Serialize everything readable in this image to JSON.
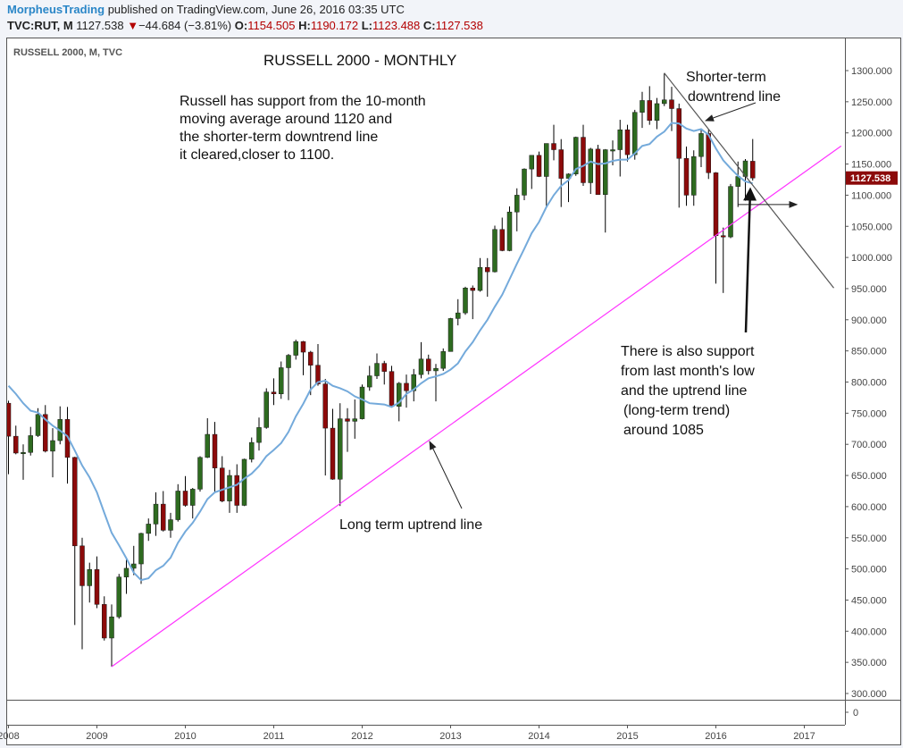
{
  "header": {
    "publisher": "MorpheusTrading",
    "published_text": "published on TradingView.com, June 26, 2016 03:35 UTC",
    "symbol": "TVC:RUT, M",
    "last": "1127.538",
    "change": "−44.684 (−3.81%)",
    "change_direction_icon": "triangle-down-icon",
    "open_label": "O:",
    "open": "1154.505",
    "high_label": "H:",
    "high": "1190.172",
    "low_label": "L:",
    "low": "1123.488",
    "close_label": "C:",
    "close": "1127.538"
  },
  "colors": {
    "up": "#2e6b20",
    "down": "#8c0a0a",
    "ma": "#74aadb",
    "uptrend": "#ff33ff",
    "downtrend": "#555555",
    "last_price_bg": "#8c0a0a"
  },
  "chart_data": {
    "type": "candlestick",
    "legend": "RUSSELL 2000, M, TVC",
    "title": "RUSSELL 2000 - MONTHLY",
    "ylim": [
      280,
      1340
    ],
    "xlim": [
      "2008-01",
      "2017-06"
    ],
    "y_ticks": [
      "300.000",
      "350.000",
      "400.000",
      "450.000",
      "500.000",
      "550.000",
      "600.000",
      "650.000",
      "700.000",
      "750.000",
      "800.000",
      "850.000",
      "900.000",
      "950.000",
      "1000.000",
      "1050.000",
      "1100.000",
      "1150.000",
      "1200.000",
      "1250.000",
      "1300.000"
    ],
    "x_ticks": [
      "2008",
      "2009",
      "2010",
      "2011",
      "2012",
      "2013",
      "2014",
      "2015",
      "2016",
      "2017"
    ],
    "sub_pane_tick": "0",
    "last_price_label": "1127.538",
    "candles_format": [
      "date",
      "open",
      "high",
      "low",
      "close"
    ],
    "candles": [
      [
        "2008-01",
        766,
        770,
        652,
        713
      ],
      [
        "2008-02",
        713,
        730,
        684,
        686
      ],
      [
        "2008-03",
        686,
        700,
        643,
        687
      ],
      [
        "2008-04",
        687,
        728,
        682,
        714
      ],
      [
        "2008-05",
        714,
        758,
        712,
        748
      ],
      [
        "2008-06",
        748,
        763,
        687,
        689
      ],
      [
        "2008-07",
        689,
        726,
        647,
        706
      ],
      [
        "2008-08",
        706,
        761,
        700,
        740
      ],
      [
        "2008-09",
        740,
        760,
        637,
        679
      ],
      [
        "2008-10",
        679,
        680,
        410,
        537
      ],
      [
        "2008-11",
        537,
        550,
        371,
        473
      ],
      [
        "2008-12",
        473,
        510,
        446,
        499
      ],
      [
        "2009-01",
        499,
        520,
        437,
        443
      ],
      [
        "2009-02",
        443,
        456,
        385,
        389
      ],
      [
        "2009-03",
        389,
        443,
        343,
        423
      ],
      [
        "2009-04",
        423,
        492,
        420,
        487
      ],
      [
        "2009-05",
        487,
        515,
        460,
        501
      ],
      [
        "2009-06",
        501,
        537,
        490,
        508
      ],
      [
        "2009-07",
        508,
        558,
        476,
        557
      ],
      [
        "2009-08",
        557,
        581,
        545,
        572
      ],
      [
        "2009-09",
        572,
        623,
        553,
        604
      ],
      [
        "2009-10",
        604,
        625,
        560,
        562
      ],
      [
        "2009-11",
        562,
        590,
        550,
        579
      ],
      [
        "2009-12",
        579,
        636,
        576,
        625
      ],
      [
        "2010-01",
        625,
        649,
        600,
        602
      ],
      [
        "2010-02",
        602,
        630,
        581,
        628
      ],
      [
        "2010-03",
        628,
        681,
        624,
        679
      ],
      [
        "2010-04",
        679,
        742,
        678,
        716
      ],
      [
        "2010-05",
        716,
        736,
        624,
        662
      ],
      [
        "2010-06",
        662,
        681,
        607,
        609
      ],
      [
        "2010-07",
        609,
        659,
        590,
        650
      ],
      [
        "2010-08",
        650,
        668,
        590,
        602
      ],
      [
        "2010-09",
        602,
        677,
        601,
        676
      ],
      [
        "2010-10",
        676,
        711,
        671,
        703
      ],
      [
        "2010-11",
        703,
        743,
        690,
        727
      ],
      [
        "2010-12",
        727,
        790,
        725,
        784
      ],
      [
        "2011-01",
        784,
        806,
        763,
        781
      ],
      [
        "2011-02",
        781,
        833,
        773,
        823
      ],
      [
        "2011-03",
        823,
        845,
        771,
        843
      ],
      [
        "2011-04",
        843,
        868,
        836,
        865
      ],
      [
        "2011-05",
        865,
        866,
        811,
        848
      ],
      [
        "2011-06",
        848,
        850,
        779,
        827
      ],
      [
        "2011-07",
        827,
        861,
        794,
        797
      ],
      [
        "2011-08",
        797,
        805,
        650,
        726
      ],
      [
        "2011-09",
        726,
        757,
        643,
        644
      ],
      [
        "2011-10",
        644,
        766,
        601,
        741
      ],
      [
        "2011-11",
        741,
        758,
        688,
        737
      ],
      [
        "2011-12",
        737,
        772,
        709,
        741
      ],
      [
        "2012-01",
        741,
        796,
        740,
        792
      ],
      [
        "2012-02",
        792,
        826,
        786,
        810
      ],
      [
        "2012-03",
        810,
        846,
        805,
        830
      ],
      [
        "2012-04",
        830,
        834,
        796,
        817
      ],
      [
        "2012-05",
        817,
        826,
        760,
        761
      ],
      [
        "2012-06",
        761,
        800,
        737,
        798
      ],
      [
        "2012-07",
        798,
        812,
        759,
        786
      ],
      [
        "2012-08",
        786,
        821,
        769,
        812
      ],
      [
        "2012-09",
        812,
        864,
        806,
        837
      ],
      [
        "2012-10",
        837,
        844,
        812,
        818
      ],
      [
        "2012-11",
        818,
        829,
        769,
        822
      ],
      [
        "2012-12",
        822,
        854,
        818,
        849
      ],
      [
        "2013-01",
        849,
        903,
        849,
        902
      ],
      [
        "2013-02",
        902,
        933,
        891,
        911
      ],
      [
        "2013-03",
        911,
        953,
        908,
        951
      ],
      [
        "2013-04",
        951,
        955,
        901,
        947
      ],
      [
        "2013-05",
        947,
        999,
        945,
        984
      ],
      [
        "2013-06",
        984,
        999,
        937,
        977
      ],
      [
        "2013-07",
        977,
        1051,
        976,
        1045
      ],
      [
        "2013-08",
        1045,
        1064,
        1010,
        1011
      ],
      [
        "2013-09",
        1011,
        1082,
        1010,
        1073
      ],
      [
        "2013-10",
        1073,
        1111,
        1042,
        1100
      ],
      [
        "2013-11",
        1100,
        1143,
        1092,
        1142
      ],
      [
        "2013-12",
        1142,
        1164,
        1110,
        1164
      ],
      [
        "2014-01",
        1164,
        1170,
        1129,
        1130
      ],
      [
        "2014-02",
        1130,
        1183,
        1082,
        1183
      ],
      [
        "2014-03",
        1183,
        1213,
        1156,
        1173
      ],
      [
        "2014-04",
        1173,
        1190,
        1081,
        1127
      ],
      [
        "2014-05",
        1127,
        1135,
        1089,
        1134
      ],
      [
        "2014-06",
        1134,
        1194,
        1131,
        1193
      ],
      [
        "2014-07",
        1193,
        1213,
        1115,
        1120
      ],
      [
        "2014-08",
        1120,
        1176,
        1102,
        1174
      ],
      [
        "2014-09",
        1174,
        1181,
        1101,
        1101
      ],
      [
        "2014-10",
        1101,
        1174,
        1040,
        1173
      ],
      [
        "2014-11",
        1173,
        1188,
        1148,
        1173
      ],
      [
        "2014-12",
        1173,
        1221,
        1130,
        1205
      ],
      [
        "2015-01",
        1205,
        1213,
        1154,
        1165
      ],
      [
        "2015-02",
        1165,
        1237,
        1157,
        1233
      ],
      [
        "2015-03",
        1233,
        1266,
        1208,
        1252
      ],
      [
        "2015-04",
        1252,
        1275,
        1213,
        1220
      ],
      [
        "2015-05",
        1220,
        1256,
        1206,
        1247
      ],
      [
        "2015-06",
        1247,
        1296,
        1243,
        1253
      ],
      [
        "2015-07",
        1253,
        1274,
        1203,
        1239
      ],
      [
        "2015-08",
        1239,
        1247,
        1080,
        1159
      ],
      [
        "2015-09",
        1159,
        1178,
        1083,
        1100
      ],
      [
        "2015-10",
        1100,
        1172,
        1083,
        1162
      ],
      [
        "2015-11",
        1162,
        1205,
        1145,
        1199
      ],
      [
        "2015-12",
        1199,
        1205,
        1126,
        1136
      ],
      [
        "2016-01",
        1136,
        1137,
        958,
        1035
      ],
      [
        "2016-02",
        1035,
        1048,
        943,
        1033
      ],
      [
        "2016-03",
        1033,
        1118,
        1031,
        1114
      ],
      [
        "2016-04",
        1114,
        1154,
        1081,
        1130
      ],
      [
        "2016-05",
        1130,
        1158,
        1091,
        1155
      ],
      [
        "2016-06",
        1154.505,
        1190.172,
        1123.488,
        1127.538
      ]
    ],
    "ma10": [
      794,
      781,
      766,
      754,
      751,
      740,
      730,
      722,
      713,
      690,
      666,
      647,
      623,
      590,
      558,
      538,
      517,
      494,
      482,
      485,
      498,
      505,
      518,
      542,
      560,
      574,
      592,
      612,
      623,
      627,
      631,
      635,
      645,
      653,
      665,
      681,
      691,
      702,
      720,
      745,
      765,
      788,
      800,
      802,
      794,
      790,
      785,
      777,
      772,
      766,
      765,
      764,
      760,
      767,
      781,
      788,
      798,
      806,
      809,
      813,
      820,
      830,
      849,
      864,
      883,
      900,
      921,
      940,
      965,
      990,
      1014,
      1039,
      1057,
      1081,
      1100,
      1115,
      1124,
      1142,
      1147,
      1154,
      1150,
      1151,
      1155,
      1157,
      1157,
      1167,
      1179,
      1182,
      1194,
      1202,
      1216,
      1215,
      1207,
      1203,
      1206,
      1197,
      1175,
      1156,
      1143,
      1131,
      1122,
      1119
    ],
    "trendlines": {
      "uptrend": [
        [
          "2009-03",
          343
        ],
        [
          "2017-06",
          1179
        ]
      ],
      "downtrend": [
        [
          "2015-06",
          1296
        ],
        [
          "2017-05",
          951
        ]
      ],
      "support_level": {
        "price": 1085,
        "from": "2016-04",
        "to": "2016-12"
      }
    }
  },
  "annotations": {
    "comment_lines": [
      "Russell has support from the 10-month",
      "moving average around 1120 and",
      "the shorter-term downtrend line",
      "it cleared,closer to 1100."
    ],
    "downtrend_label": [
      "Shorter-term",
      "downtrend line"
    ],
    "support_lines": [
      "There is also support",
      "from last month's low",
      "and the uptrend line",
      "(long-term trend)",
      "around 1085"
    ],
    "uptrend_label": "Long term uptrend line"
  }
}
